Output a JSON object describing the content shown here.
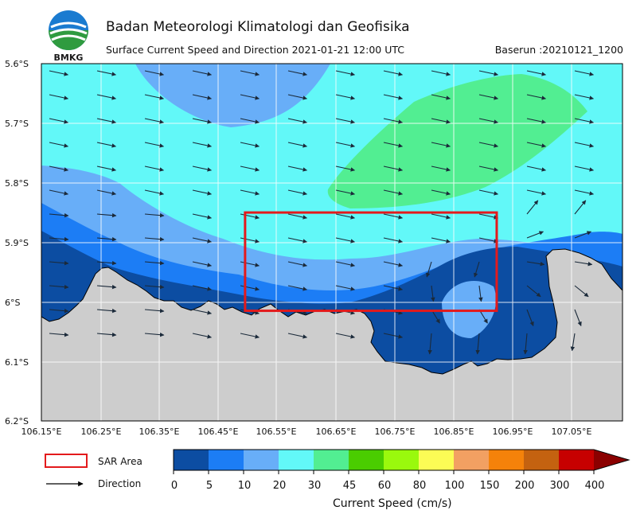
{
  "header": {
    "org_title": "Badan Meteorologi Klimatologi dan Geofisika",
    "subtitle": "Surface Current Speed and Direction 2021-01-21 12:00 UTC",
    "baserun": "Baserun :20210121_1200",
    "logo_text": "BMKG"
  },
  "map": {
    "y_ticks": [
      "5.6°S",
      "5.7°S",
      "5.8°S",
      "5.9°S",
      "6°S",
      "6.1°S",
      "6.2°S"
    ],
    "x_ticks": [
      "106.15°E",
      "106.25°E",
      "106.35°E",
      "106.45°E",
      "106.55°E",
      "106.65°E",
      "106.75°E",
      "106.85°E",
      "106.95°E",
      "107.05°E"
    ],
    "lat_range": [
      -6.2,
      -5.6
    ],
    "lon_range": [
      106.15,
      107.12
    ],
    "land_color": "#cdcdcd",
    "grid": true,
    "sar_area": {
      "lon_min": 106.49,
      "lon_max": 106.91,
      "lat_min": -6.015,
      "lat_max": -5.85,
      "color": "#e31a1c"
    }
  },
  "legend": {
    "sar_label": "SAR Area",
    "direction_label": "Direction"
  },
  "colorbar": {
    "title": "Current Speed (cm/s)",
    "labels": [
      "0",
      "5",
      "10",
      "20",
      "30",
      "45",
      "60",
      "80",
      "100",
      "150",
      "200",
      "300",
      "400"
    ],
    "colors": [
      "#0c4da2",
      "#1c7df5",
      "#68aef8",
      "#62f8f8",
      "#52ee92",
      "#4acd00",
      "#9af90d",
      "#fcfc55",
      "#f2a062",
      "#f5820a",
      "#c46210",
      "#c70000",
      "#8b0000"
    ]
  }
}
